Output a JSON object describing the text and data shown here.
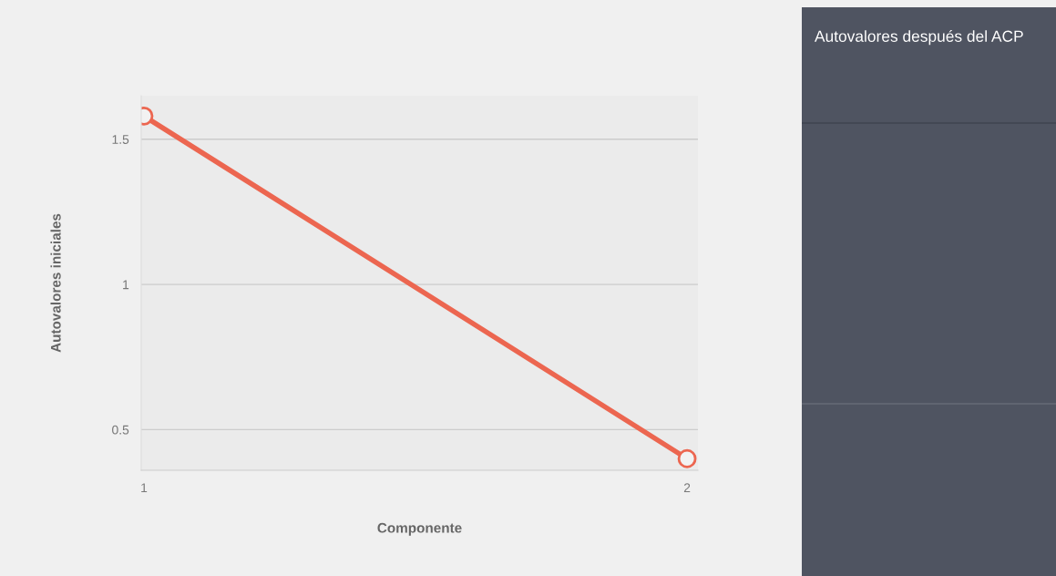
{
  "chart_data": {
    "type": "line",
    "title": "Autovalores después del ACP",
    "xlabel": "Componente",
    "ylabel": "Autovalores iniciales",
    "x": [
      1,
      2
    ],
    "series": [
      {
        "color": "#ec6650",
        "values": [
          1.58,
          0.4
        ]
      }
    ],
    "xlim": [
      0.995,
      2.02
    ],
    "xticks": [
      1,
      2
    ],
    "ylim": [
      0.36,
      1.65
    ],
    "yticks": [
      0.5,
      1,
      1.5
    ],
    "grid": "y",
    "marker": "circle",
    "line_style": "solid",
    "legend": false
  }
}
